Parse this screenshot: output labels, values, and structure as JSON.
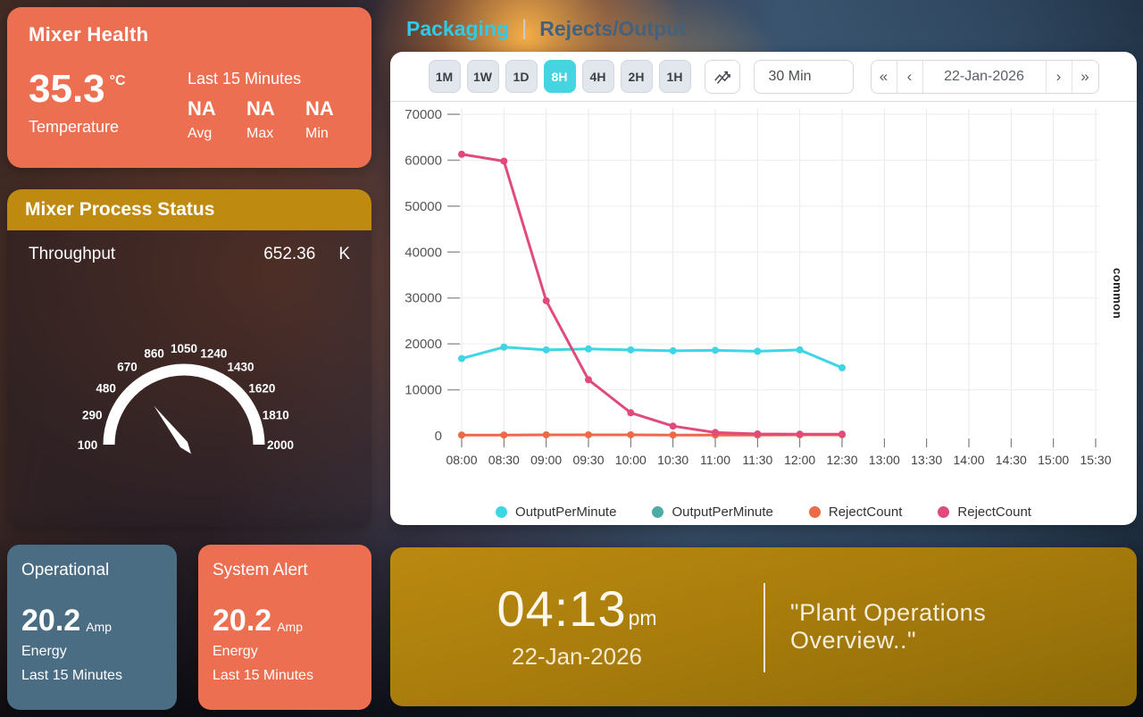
{
  "colors": {
    "salmon": "#ED6F52",
    "steel_blue": "#4A6D84",
    "gold_header": "#BE8A10",
    "active_chip": "#45D4E0",
    "tab_active": "#30C9E8",
    "tab_inactive": "#44617D"
  },
  "left_panel": {
    "mixer_health": {
      "title": "Mixer Health",
      "temperature_value": "35.3",
      "temperature_unit": "°C",
      "temperature_label": "Temperature",
      "window_label": "Last 15 Minutes",
      "stats": [
        {
          "value": "NA",
          "label": "Avg"
        },
        {
          "value": "NA",
          "label": "Max"
        },
        {
          "value": "NA",
          "label": "Min"
        }
      ]
    },
    "process_status": {
      "title": "Mixer Process Status",
      "throughput_label": "Throughput",
      "throughput_value": "652.36",
      "throughput_unit": "K",
      "gauge": {
        "min": 100,
        "max": 2000,
        "value": 652.36,
        "tick_labels": [
          "100",
          "290",
          "480",
          "670",
          "860",
          "1050",
          "1240",
          "1430",
          "1620",
          "1810",
          "2000"
        ]
      }
    },
    "operational": {
      "title": "Operational",
      "value": "20.2",
      "unit": "Amp",
      "line1": "Energy",
      "line2": "Last 15 Minutes"
    },
    "system_alert": {
      "title": "System Alert",
      "value": "20.2",
      "unit": "Amp",
      "line1": "Energy",
      "line2": "Last 15 Minutes"
    }
  },
  "tabs": [
    {
      "label": "Packaging",
      "active": true
    },
    {
      "label": "Rejects/Output",
      "active": false
    }
  ],
  "tab_divider": "|",
  "toolbar": {
    "range_buttons": [
      "1M",
      "1W",
      "1D",
      "8H",
      "4H",
      "2H",
      "1H"
    ],
    "active_range": "8H",
    "trend_icon": "multi-trend-icon",
    "interval_value": "30 Min",
    "date_nav": {
      "first": "«",
      "prev": "‹",
      "date": "22-Jan-2026",
      "next": "›",
      "last": "»"
    }
  },
  "chart_data": {
    "type": "line",
    "x": [
      "08:00",
      "08:30",
      "09:00",
      "09:30",
      "10:00",
      "10:30",
      "11:00",
      "11:30",
      "12:00",
      "12:30",
      "13:00",
      "13:30",
      "14:00",
      "14:30",
      "15:00",
      "15:30"
    ],
    "series": [
      {
        "name": "OutputPerMinute",
        "color": "#3ED5E4",
        "values": [
          16800,
          19300,
          18700,
          18900,
          18700,
          18500,
          18600,
          18400,
          18700,
          14800
        ]
      },
      {
        "name": "OutputPerMinute",
        "color": "#4BABA5",
        "values": []
      },
      {
        "name": "RejectCount",
        "color": "#EC6A45",
        "values": [
          150,
          150,
          200,
          200,
          200,
          150,
          150,
          150,
          200,
          200
        ]
      },
      {
        "name": "RejectCount",
        "color": "#E04B7B",
        "values": [
          61300,
          59800,
          29400,
          12200,
          5000,
          2100,
          700,
          400,
          350,
          350
        ]
      }
    ],
    "ylim": [
      0,
      70000
    ],
    "ytick_step": 10000,
    "grid": true,
    "legend_position": "bottom",
    "right_axis_label": "common"
  },
  "footer": {
    "time": "04:13",
    "meridiem": "pm",
    "date": "22-Jan-2026",
    "quote": "\"Plant Operations Overview..\""
  }
}
